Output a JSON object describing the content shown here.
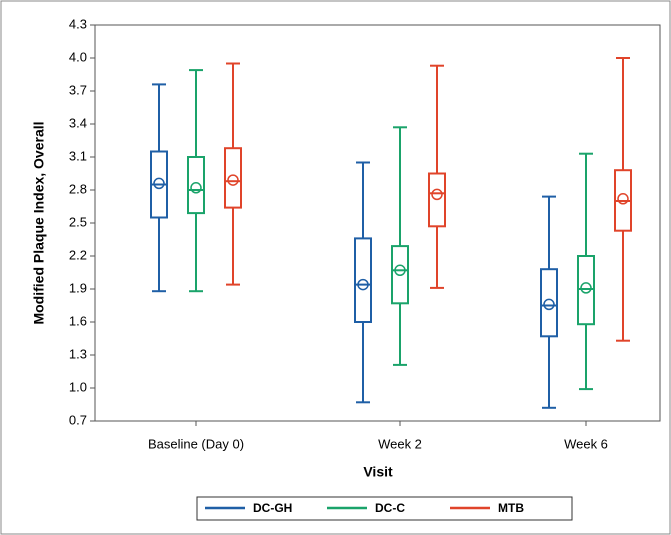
{
  "chart_data": {
    "type": "box",
    "y_label": "Modified Plaque Index, Overall",
    "x_label": "Visit",
    "categories": [
      "Baseline (Day 0)",
      "Week 2",
      "Week 6"
    ],
    "ylim": [
      0.7,
      4.3
    ],
    "yticks": [
      0.7,
      {
        "value": 1,
        "label": "1.0"
      },
      1.3,
      1.6,
      1.9,
      2.2,
      2.5,
      2.8,
      3.1,
      3.4,
      3.7,
      {
        "value": 4,
        "label": "4.0"
      },
      4.3
    ],
    "series": [
      {
        "name": "DC-GH",
        "color": "#1f5fa6",
        "low": [
          1.88,
          0.87,
          0.82
        ],
        "q1": [
          2.55,
          1.6,
          1.47
        ],
        "median": [
          2.85,
          1.94,
          1.75
        ],
        "q3": [
          3.15,
          2.36,
          2.08
        ],
        "high": [
          3.76,
          3.05,
          2.74
        ],
        "mean": [
          2.86,
          1.94,
          1.76
        ]
      },
      {
        "name": "DC-C",
        "color": "#1aa36a",
        "low": [
          1.88,
          1.21,
          0.99
        ],
        "q1": [
          2.59,
          1.77,
          1.58
        ],
        "median": [
          2.8,
          2.07,
          1.9
        ],
        "q3": [
          3.1,
          2.29,
          2.2
        ],
        "high": [
          3.89,
          3.37,
          3.13
        ],
        "mean": [
          2.82,
          2.07,
          1.91
        ]
      },
      {
        "name": "MTB",
        "color": "#e0442a",
        "low": [
          1.94,
          1.91,
          1.43
        ],
        "q1": [
          2.64,
          2.47,
          2.43
        ],
        "median": [
          2.88,
          2.77,
          2.7
        ],
        "q3": [
          3.18,
          2.95,
          2.98
        ],
        "high": [
          3.95,
          3.93,
          4.0
        ],
        "mean": [
          2.89,
          2.76,
          2.72
        ]
      }
    ]
  }
}
